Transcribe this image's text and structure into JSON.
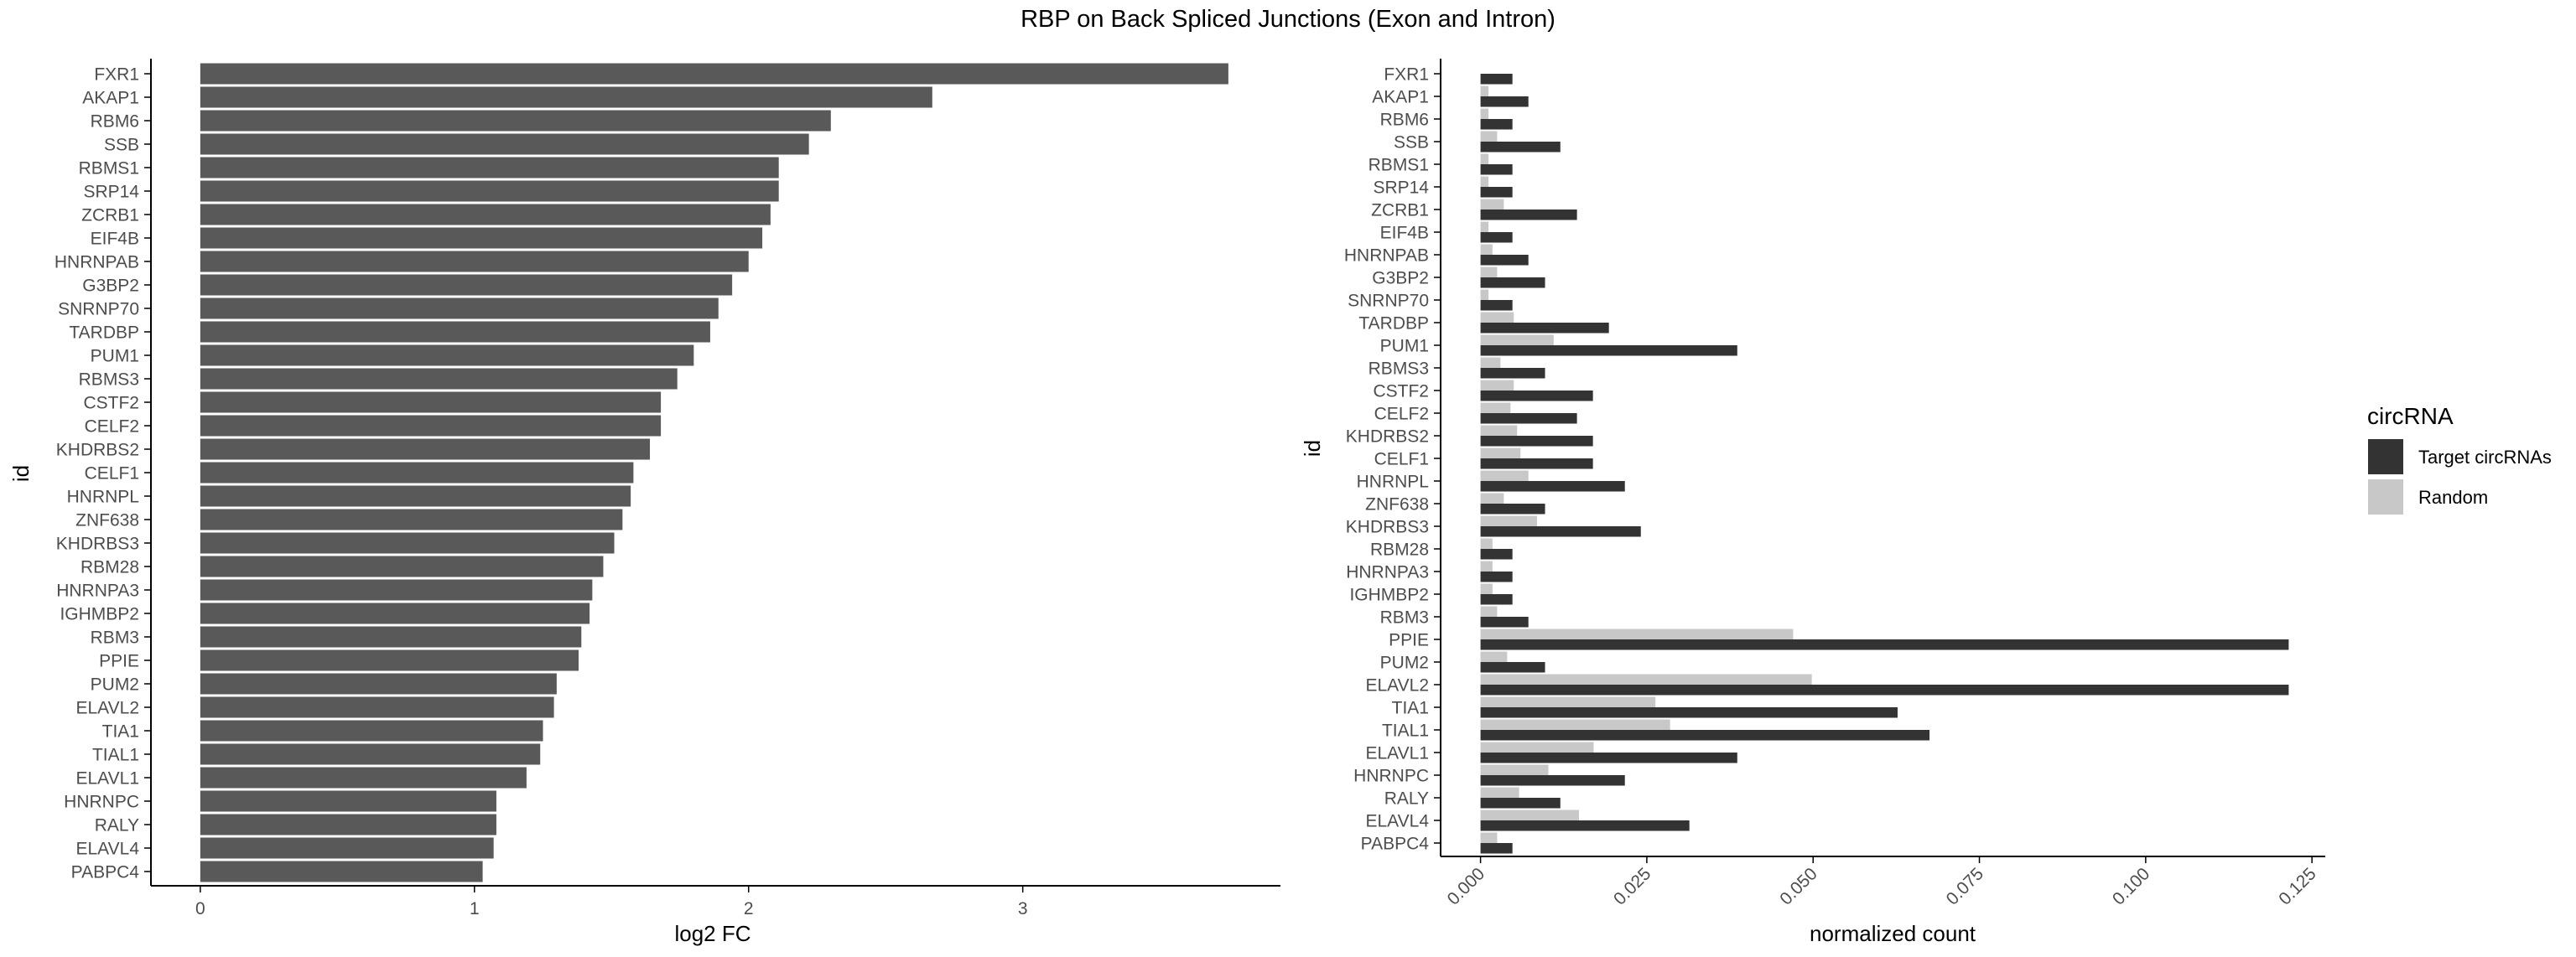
{
  "figure_title": "RBP on Back Spliced Junctions (Exon and Intron)",
  "colors": {
    "bar_left": "#595959",
    "target": "#333333",
    "random": "#c8c8c8",
    "axis": "#000000",
    "text": "#4d4d4d"
  },
  "chart_data": [
    {
      "type": "bar",
      "orientation": "horizontal",
      "title": "",
      "xlabel": "log2 FC",
      "ylabel": "id",
      "xlim": [
        -0.18,
        3.94
      ],
      "xticks": [
        0,
        1,
        2,
        3
      ],
      "grid": false,
      "categories": [
        "FXR1",
        "AKAP1",
        "RBM6",
        "SSB",
        "RBMS1",
        "SRP14",
        "ZCRB1",
        "EIF4B",
        "HNRNPAB",
        "G3BP2",
        "SNRNP70",
        "TARDBP",
        "PUM1",
        "RBMS3",
        "CSTF2",
        "CELF2",
        "KHDRBS2",
        "CELF1",
        "HNRNPL",
        "ZNF638",
        "KHDRBS3",
        "RBM28",
        "HNRNPA3",
        "IGHMBP2",
        "RBM3",
        "PPIE",
        "PUM2",
        "ELAVL2",
        "TIA1",
        "TIAL1",
        "ELAVL1",
        "HNRNPC",
        "RALY",
        "ELAVL4",
        "PABPC4"
      ],
      "values": [
        3.75,
        2.67,
        2.3,
        2.22,
        2.11,
        2.11,
        2.08,
        2.05,
        2.0,
        1.94,
        1.89,
        1.86,
        1.8,
        1.74,
        1.68,
        1.68,
        1.64,
        1.58,
        1.57,
        1.54,
        1.51,
        1.47,
        1.43,
        1.42,
        1.39,
        1.38,
        1.3,
        1.29,
        1.25,
        1.24,
        1.19,
        1.08,
        1.08,
        1.07,
        1.03
      ]
    },
    {
      "type": "bar",
      "orientation": "horizontal",
      "title": "",
      "xlabel": "normalized count",
      "ylabel": "id",
      "xlim": [
        -0.006,
        0.127
      ],
      "xticks": [
        0.0,
        0.025,
        0.05,
        0.075,
        0.1,
        0.125
      ],
      "xtick_labels": [
        "0.000",
        "0.025",
        "0.050",
        "0.075",
        "0.100",
        "0.125"
      ],
      "grid": false,
      "legend": {
        "title": "circRNA",
        "placement": "right"
      },
      "categories": [
        "FXR1",
        "AKAP1",
        "RBM6",
        "SSB",
        "RBMS1",
        "SRP14",
        "ZCRB1",
        "EIF4B",
        "HNRNPAB",
        "G3BP2",
        "SNRNP70",
        "TARDBP",
        "PUM1",
        "RBMS3",
        "CSTF2",
        "CELF2",
        "KHDRBS2",
        "CELF1",
        "HNRNPL",
        "ZNF638",
        "KHDRBS3",
        "RBM28",
        "HNRNPA3",
        "IGHMBP2",
        "RBM3",
        "PPIE",
        "PUM2",
        "ELAVL2",
        "TIA1",
        "TIAL1",
        "ELAVL1",
        "HNRNPC",
        "RALY",
        "ELAVL4",
        "PABPC4"
      ],
      "series": [
        {
          "name": "Target circRNAs",
          "values": [
            0.0048,
            0.0072,
            0.0048,
            0.012,
            0.0048,
            0.0048,
            0.0145,
            0.0048,
            0.0072,
            0.0097,
            0.0048,
            0.0193,
            0.0386,
            0.0097,
            0.0169,
            0.0145,
            0.0169,
            0.0169,
            0.0217,
            0.0097,
            0.0241,
            0.0048,
            0.0048,
            0.0048,
            0.0072,
            0.1215,
            0.0097,
            0.1215,
            0.0627,
            0.0675,
            0.0386,
            0.0217,
            0.012,
            0.0314,
            0.0048
          ]
        },
        {
          "name": "Random",
          "values": [
            0.0,
            0.0012,
            0.0012,
            0.0025,
            0.0012,
            0.0012,
            0.0035,
            0.0012,
            0.0018,
            0.0025,
            0.0012,
            0.005,
            0.011,
            0.003,
            0.005,
            0.0045,
            0.0055,
            0.006,
            0.0072,
            0.0035,
            0.0085,
            0.0018,
            0.0018,
            0.0018,
            0.0025,
            0.047,
            0.004,
            0.0498,
            0.0263,
            0.0285,
            0.017,
            0.0102,
            0.0058,
            0.0148,
            0.0025
          ]
        }
      ]
    }
  ]
}
